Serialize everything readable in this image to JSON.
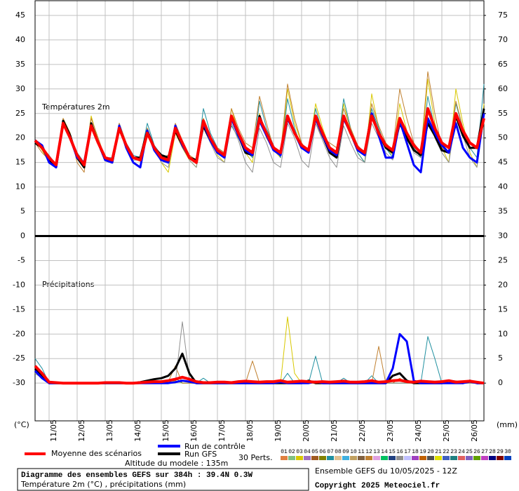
{
  "chart_data": {
    "type": "line",
    "temperature_label": "Températures 2m",
    "precipitation_label": "Précipitations",
    "y_unit": "(°C)",
    "y2_unit": "(mm)",
    "xlim": [
      10.5,
      26.5
    ],
    "xticks": [
      {
        "value": 11,
        "label": "11/05"
      },
      {
        "value": 12,
        "label": "12/05"
      },
      {
        "value": 13,
        "label": "13/05"
      },
      {
        "value": 14,
        "label": "14/05"
      },
      {
        "value": 15,
        "label": "15/05"
      },
      {
        "value": 16,
        "label": "16/05"
      },
      {
        "value": 17,
        "label": "17/05"
      },
      {
        "value": 18,
        "label": "18/05"
      },
      {
        "value": 19,
        "label": "19/05"
      },
      {
        "value": 20,
        "label": "20/05"
      },
      {
        "value": 21,
        "label": "21/05"
      },
      {
        "value": 22,
        "label": "22/05"
      },
      {
        "value": 23,
        "label": "23/05"
      },
      {
        "value": 24,
        "label": "24/05"
      },
      {
        "value": 25,
        "label": "25/05"
      },
      {
        "value": 26,
        "label": "26/05"
      }
    ],
    "ylim": [
      -37.7,
      48
    ],
    "yticks": [
      -30,
      -25,
      -20,
      -15,
      -10,
      -5,
      0,
      5,
      10,
      15,
      20,
      25,
      30,
      35,
      40,
      45
    ],
    "y2lim": [
      -7.7,
      78
    ],
    "y2ticks": [
      0,
      5,
      10,
      15,
      20,
      25,
      30,
      35,
      40,
      45,
      50,
      55,
      60,
      65,
      70,
      75
    ],
    "divider_at": 0,
    "grid": true,
    "x": [
      10.5,
      10.75,
      11,
      11.25,
      11.5,
      11.75,
      12,
      12.25,
      12.5,
      12.75,
      13,
      13.25,
      13.5,
      13.75,
      14,
      14.25,
      14.5,
      14.75,
      15,
      15.25,
      15.5,
      15.75,
      16,
      16.25,
      16.5,
      16.75,
      17,
      17.25,
      17.5,
      17.75,
      18,
      18.25,
      18.5,
      18.75,
      19,
      19.25,
      19.5,
      19.75,
      20,
      20.25,
      20.5,
      20.75,
      21,
      21.25,
      21.5,
      21.75,
      22,
      22.25,
      22.5,
      22.75,
      23,
      23.25,
      23.5,
      23.75,
      24,
      24.25,
      24.5,
      24.75,
      25,
      25.25,
      25.5,
      25.75,
      26,
      26.25,
      26.5
    ],
    "series": [
      {
        "name": "Moyenne des scénarios",
        "color": "#ff0000",
        "width": 4,
        "temperature": [
          19.5,
          18,
          16,
          14.5,
          23,
          20,
          16.5,
          14.5,
          22.5,
          19,
          16,
          15.5,
          22,
          18.5,
          16,
          15.5,
          21,
          18,
          16,
          15.5,
          22,
          19,
          16,
          15,
          23.5,
          20,
          17.5,
          16.5,
          24.5,
          21,
          18,
          17,
          24,
          21,
          18,
          17,
          24.5,
          21,
          18.5,
          17.5,
          24.5,
          21,
          18,
          17,
          24.5,
          21,
          18,
          17,
          24.5,
          21,
          18.5,
          17.5,
          24,
          21,
          18.5,
          17,
          26,
          22,
          19,
          18,
          25,
          21.5,
          19,
          18,
          24
        ],
        "precipitation": [
          3.5,
          2,
          0.2,
          0.1,
          0,
          0,
          0,
          0,
          0,
          0,
          0.1,
          0.1,
          0.1,
          0,
          0,
          0.1,
          0.2,
          0.3,
          0.3,
          0.5,
          0.8,
          1.2,
          0.8,
          0.3,
          0.1,
          0.1,
          0.2,
          0.2,
          0.1,
          0.3,
          0.4,
          0.3,
          0.2,
          0.3,
          0.3,
          0.5,
          0.2,
          0.3,
          0.4,
          0.3,
          0.2,
          0.3,
          0.2,
          0.3,
          0.4,
          0.2,
          0.2,
          0.3,
          0.5,
          0.2,
          0.3,
          0.5,
          0.6,
          0.3,
          0.2,
          0.4,
          0.3,
          0.2,
          0.3,
          0.5,
          0.2,
          0.3,
          0.4,
          0.2,
          0
        ]
      },
      {
        "name": "Run de contrôle",
        "color": "#0000ff",
        "width": 3,
        "temperature": [
          19.5,
          18.5,
          15,
          14,
          23,
          20,
          16,
          15,
          22.5,
          19,
          15.5,
          15,
          22.5,
          18,
          15,
          14,
          21.5,
          17.5,
          15.5,
          15,
          22.5,
          18.5,
          16,
          15,
          23,
          19.5,
          17,
          16,
          24,
          20.5,
          17.5,
          16.5,
          23.5,
          20.5,
          17.5,
          16.5,
          24,
          21,
          18,
          17,
          24,
          20.5,
          17.5,
          16.5,
          24,
          21,
          17.5,
          16.5,
          25,
          20.5,
          16,
          16,
          23.5,
          19,
          14.5,
          13,
          24,
          21,
          18.5,
          17,
          23,
          18,
          16,
          15,
          25
        ],
        "precipitation": [
          2.5,
          1,
          0,
          0,
          0,
          0,
          0,
          0,
          0,
          0,
          0,
          0,
          0,
          0,
          0,
          0,
          0,
          0,
          0,
          0,
          0.2,
          0.5,
          0.3,
          0,
          0,
          0,
          0,
          0,
          0,
          0,
          0,
          0,
          0,
          0,
          0,
          0.2,
          0,
          0,
          0,
          0,
          0.3,
          0,
          0,
          0,
          0,
          0,
          0,
          0,
          0,
          0,
          0,
          3,
          10,
          8.5,
          0.5,
          0,
          0,
          0,
          0,
          0,
          0,
          0,
          0.3,
          0,
          0
        ]
      },
      {
        "name": "Run GFS",
        "color": "#000000",
        "width": 3,
        "temperature": [
          19,
          18,
          15.5,
          14,
          23.5,
          20.5,
          16,
          14,
          23,
          19,
          15.5,
          15,
          22,
          18.5,
          16,
          16,
          21.5,
          18,
          16.5,
          16,
          21.5,
          18.5,
          16,
          15.5,
          22.5,
          19.5,
          17,
          16.5,
          24,
          20.5,
          17,
          16.5,
          24.5,
          20.5,
          18,
          17,
          24,
          21,
          18,
          17.5,
          24,
          20.5,
          17,
          16,
          24,
          21,
          17.5,
          17,
          25,
          21,
          18,
          17,
          23,
          20,
          17.5,
          16.5,
          23,
          20.5,
          17.5,
          17,
          24.5,
          20.5,
          18,
          18,
          26
        ],
        "precipitation": [
          3,
          1.5,
          0,
          0,
          0,
          0,
          0,
          0,
          0,
          0,
          0,
          0,
          0,
          0,
          0,
          0.2,
          0.5,
          0.8,
          1,
          1.5,
          3,
          6,
          2,
          0,
          0,
          0,
          0,
          0,
          0,
          0,
          0,
          0,
          0,
          0,
          0,
          0,
          0,
          0,
          0,
          0.5,
          0,
          0,
          0,
          0,
          0,
          0,
          0,
          0,
          0,
          0,
          0,
          1.5,
          2,
          0.5,
          0,
          0,
          0,
          0,
          0,
          0.5,
          0.3,
          0,
          0.5,
          0,
          0
        ]
      }
    ],
    "members_label": "30 Perts.",
    "members": [
      {
        "label": "01",
        "color": "#e08040"
      },
      {
        "label": "02",
        "color": "#80c080"
      },
      {
        "label": "03",
        "color": "#d8c800",
        "temperature": [
          19.5,
          17.5,
          15,
          14,
          24,
          21,
          16,
          14,
          24.5,
          19.5,
          16,
          15,
          22.5,
          18.5,
          16,
          16,
          22,
          18,
          15,
          13,
          21,
          18,
          15.5,
          14,
          24,
          20,
          16.5,
          15,
          26,
          21,
          17,
          15,
          25,
          20,
          17.5,
          16,
          30,
          23,
          19,
          17,
          27,
          22,
          18,
          16,
          27,
          21.5,
          17,
          15,
          29,
          22,
          18,
          16.5,
          27,
          21.5,
          18,
          16,
          32,
          23,
          18,
          15,
          30,
          23,
          17,
          14,
          27
        ],
        "precipitation": [
          2,
          1,
          0,
          0,
          0,
          0,
          0,
          0,
          0,
          0,
          0,
          0,
          0,
          0,
          0,
          0,
          0,
          0,
          0,
          0,
          0.5,
          0,
          0,
          0,
          0,
          0,
          0,
          0,
          0,
          0,
          0,
          0,
          0,
          0,
          0,
          0,
          13.5,
          2,
          0,
          0,
          0,
          0,
          0,
          0,
          0,
          0,
          0,
          0,
          0,
          0,
          0,
          0,
          0,
          0,
          0,
          0,
          0,
          0,
          0,
          0,
          0,
          0,
          0,
          0,
          0
        ]
      },
      {
        "label": "04",
        "color": "#a070c0"
      },
      {
        "label": "05",
        "color": "#a05a20"
      },
      {
        "label": "06",
        "color": "#808000"
      },
      {
        "label": "07",
        "color": "#2090a0",
        "temperature": [
          19.5,
          18,
          16,
          14.5,
          22.5,
          20,
          17,
          15,
          22,
          19,
          16,
          16,
          23,
          19,
          16.5,
          16,
          23,
          18.5,
          16.5,
          16,
          21.5,
          19,
          16,
          15,
          26,
          21,
          18,
          17,
          22.5,
          20,
          17.5,
          16,
          27.5,
          22,
          18.5,
          16,
          28,
          22,
          18,
          17,
          26,
          21,
          18,
          16.5,
          28,
          22,
          17,
          15,
          26,
          22,
          18,
          16,
          23,
          20,
          18,
          16,
          28.5,
          22,
          19,
          17,
          27,
          22,
          18,
          16,
          31
        ],
        "precipitation": [
          5,
          3,
          0,
          0,
          0,
          0,
          0,
          0,
          0,
          0,
          0,
          0,
          0.3,
          0,
          0,
          0,
          0.5,
          0,
          0,
          0,
          1,
          0,
          0,
          0,
          1,
          0,
          0,
          0,
          0,
          0,
          0,
          0,
          0,
          0,
          0,
          0,
          2,
          0,
          0,
          0,
          5.5,
          0,
          0,
          0,
          1,
          0,
          0,
          0,
          1.5,
          0,
          0,
          0,
          0,
          0,
          0,
          0,
          9.5,
          5,
          0,
          0,
          0,
          0,
          0,
          0,
          0
        ]
      },
      {
        "label": "08",
        "color": "#e0c090"
      },
      {
        "label": "09",
        "color": "#40b0e0"
      },
      {
        "label": "10",
        "color": "#c0a060"
      },
      {
        "label": "11",
        "color": "#806040"
      },
      {
        "label": "12",
        "color": "#c08030",
        "temperature": [
          19,
          17,
          15.5,
          14,
          24,
          21,
          15,
          13,
          24,
          20,
          16,
          15,
          23,
          19,
          16,
          15.5,
          22,
          18,
          16,
          16.5,
          23,
          19.5,
          16.5,
          15.5,
          24,
          20,
          18,
          17,
          26,
          22,
          19,
          18,
          28.5,
          23,
          18,
          17,
          31,
          24,
          19,
          17,
          23,
          20,
          19,
          18,
          26,
          22,
          18.5,
          17,
          27,
          22.5,
          19,
          17.5,
          30,
          24,
          19,
          17,
          33.5,
          25,
          18,
          17,
          27.5,
          22,
          19,
          18,
          23
        ],
        "precipitation": [
          3,
          1,
          0,
          0,
          0,
          0,
          0,
          0,
          0,
          0,
          0,
          0,
          0,
          0,
          0,
          0,
          0,
          0,
          0,
          0.3,
          3.5,
          0,
          0,
          0,
          0,
          0,
          0,
          0,
          0,
          0,
          0,
          4.5,
          0,
          0,
          0,
          0,
          0,
          0,
          0,
          0,
          0,
          0,
          0,
          0,
          0,
          0,
          0,
          0,
          0,
          7.5,
          0,
          0,
          1,
          0,
          0,
          0,
          0,
          0,
          0,
          0,
          0,
          0,
          0,
          0,
          0
        ]
      },
      {
        "label": "13",
        "color": "#e0a0e0"
      },
      {
        "label": "14",
        "color": "#00c060"
      },
      {
        "label": "15",
        "color": "#204080"
      },
      {
        "label": "16",
        "color": "#909090",
        "temperature": [
          19.5,
          18,
          16.5,
          14.5,
          23,
          20,
          16.5,
          15,
          22,
          19,
          15.5,
          15.5,
          22,
          18.5,
          15.5,
          15.5,
          21,
          18,
          15,
          14,
          21.5,
          18.5,
          15.5,
          14,
          22,
          19,
          16,
          15,
          23,
          19.5,
          15,
          13,
          22,
          19,
          15,
          14,
          23,
          20,
          15.5,
          14,
          23,
          19.5,
          16,
          14,
          22.5,
          19,
          16,
          15,
          23,
          20,
          17,
          15.5,
          24,
          20.5,
          17,
          16,
          24,
          20,
          17,
          15,
          24,
          20.5,
          16,
          14,
          24
        ],
        "precipitation": [
          2,
          1,
          0,
          0,
          0,
          0,
          0,
          0,
          0,
          0,
          0,
          0,
          0,
          0,
          0,
          0,
          0,
          0,
          0,
          0,
          0,
          12.5,
          1,
          0,
          0,
          0,
          0,
          0,
          0,
          0,
          0,
          0,
          0,
          0,
          0,
          0,
          0,
          0,
          0,
          0,
          0,
          0,
          0,
          0,
          0,
          0,
          0,
          0,
          0,
          0,
          0,
          0,
          0,
          0,
          0,
          0,
          0,
          0,
          0,
          0,
          0,
          0,
          0,
          0,
          0
        ]
      },
      {
        "label": "17",
        "color": "#c0c0ff"
      },
      {
        "label": "18",
        "color": "#a040c0"
      },
      {
        "label": "19",
        "color": "#c06000"
      },
      {
        "label": "20",
        "color": "#505050"
      },
      {
        "label": "21",
        "color": "#e0e000"
      },
      {
        "label": "22",
        "color": "#4060c0"
      },
      {
        "label": "23",
        "color": "#208080"
      },
      {
        "label": "24",
        "color": "#e06060"
      },
      {
        "label": "25",
        "color": "#8060c0"
      },
      {
        "label": "26",
        "color": "#60a000"
      },
      {
        "label": "27",
        "color": "#c040c0"
      },
      {
        "label": "28",
        "color": "#000080"
      },
      {
        "label": "29",
        "color": "#800000"
      },
      {
        "label": "30",
        "color": "#0040c0"
      }
    ],
    "altitude": "Altitude du modele : 135m",
    "info_title": "Diagramme des ensembles GEFS sur 384h : 39.4N 0.3W",
    "info_subtitle": "Température 2m (°C) , précipitations (mm)",
    "run": "Ensemble GEFS du 10/05/2025 - 12Z",
    "copyright": "Copyright 2025 Meteociel.fr"
  }
}
